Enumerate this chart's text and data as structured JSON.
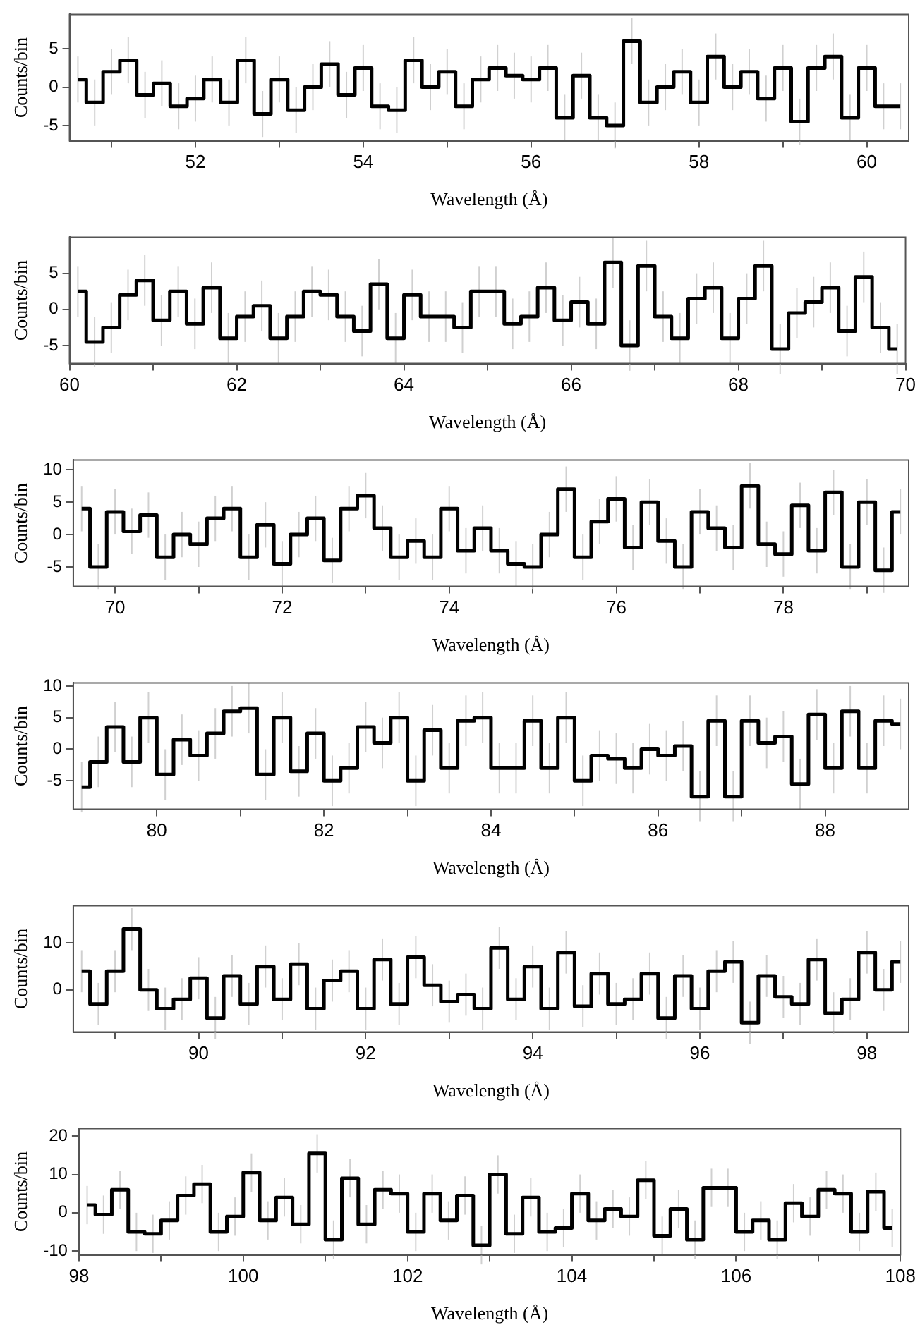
{
  "chart_data": [
    {
      "type": "step",
      "xlabel": "Wavelength (Å)",
      "ylabel": "Counts/bin",
      "color": "#000000",
      "grid": false,
      "xlim": [
        50.5,
        60.5
      ],
      "xticks": [
        {
          "value": 51,
          "label": null
        },
        52,
        {
          "value": 53,
          "label": null
        },
        54,
        {
          "value": 55,
          "label": null
        },
        56,
        {
          "value": 57,
          "label": null
        },
        58,
        {
          "value": 59,
          "label": null
        },
        60
      ],
      "ylim": [
        -7,
        9.5
      ],
      "yticks": [
        -5,
        0,
        5
      ],
      "x": [
        50.6,
        50.8,
        51.0,
        51.2,
        51.4,
        51.6,
        51.8,
        52.0,
        52.2,
        52.4,
        52.6,
        52.8,
        53.0,
        53.2,
        53.4,
        53.6,
        53.8,
        54.0,
        54.2,
        54.4,
        54.6,
        54.8,
        55.0,
        55.2,
        55.4,
        55.6,
        55.8,
        56.0,
        56.2,
        56.4,
        56.6,
        56.8,
        57.0,
        57.2,
        57.4,
        57.6,
        57.8,
        58.0,
        58.2,
        58.4,
        58.6,
        58.8,
        59.0,
        59.2,
        59.4,
        59.6,
        59.8,
        60.0,
        60.2,
        60.4
      ],
      "values": [
        1,
        -2,
        2,
        3.5,
        -1,
        0.5,
        -2.5,
        -1.5,
        1,
        -2,
        3.5,
        -3.5,
        1,
        -3,
        0,
        3,
        -1,
        2.5,
        -2.5,
        -3,
        3.5,
        0,
        2,
        -2.5,
        1,
        2.5,
        1.5,
        1,
        2.5,
        -4,
        1.5,
        -4,
        -5,
        6,
        -2,
        0,
        2,
        -2,
        4,
        0,
        2,
        -1.5,
        2.5,
        -4.5,
        2.5,
        4,
        -4,
        2.5,
        -2.5,
        -2.5
      ],
      "errors": [
        3,
        3,
        3,
        3,
        3,
        3,
        3,
        3,
        3,
        3,
        3,
        3,
        3,
        3,
        3,
        3,
        3,
        3,
        3,
        3,
        3,
        3,
        3,
        3,
        3,
        3,
        3,
        3,
        3,
        3,
        3,
        3,
        3,
        3,
        3,
        3,
        3,
        3,
        3,
        3,
        3,
        3,
        3,
        3,
        3,
        3,
        3,
        3,
        3,
        3
      ]
    },
    {
      "type": "step",
      "xlabel": "Wavelength (Å)",
      "ylabel": "Counts/bin",
      "color": "#000000",
      "grid": false,
      "xlim": [
        60,
        70
      ],
      "xticks": [
        60,
        {
          "value": 61,
          "label": null
        },
        62,
        {
          "value": 63,
          "label": null
        },
        64,
        {
          "value": 65,
          "label": null
        },
        66,
        {
          "value": 67,
          "label": null
        },
        68,
        {
          "value": 69,
          "label": null
        },
        70
      ],
      "ylim": [
        -7.5,
        10
      ],
      "yticks": [
        -5,
        0,
        5
      ],
      "x": [
        60.1,
        60.3,
        60.5,
        60.7,
        60.9,
        61.1,
        61.3,
        61.5,
        61.7,
        61.9,
        62.1,
        62.3,
        62.5,
        62.7,
        62.9,
        63.1,
        63.3,
        63.5,
        63.7,
        63.9,
        64.1,
        64.3,
        64.5,
        64.7,
        64.9,
        65.1,
        65.3,
        65.5,
        65.7,
        65.9,
        66.1,
        66.3,
        66.5,
        66.7,
        66.9,
        67.1,
        67.3,
        67.5,
        67.7,
        67.9,
        68.1,
        68.3,
        68.5,
        68.7,
        68.9,
        69.1,
        69.3,
        69.5,
        69.7,
        69.9
      ],
      "values": [
        2.5,
        -4.5,
        -2.5,
        2,
        4,
        -1.5,
        2.5,
        -2,
        3,
        -4,
        -1,
        0.5,
        -4,
        -1,
        2.5,
        2,
        -1,
        -3,
        3.5,
        -4,
        2,
        -1,
        -1,
        -2.5,
        2.5,
        2.5,
        -2,
        -1,
        3,
        -1.5,
        1,
        -2,
        6.5,
        -5,
        6,
        -1,
        -4,
        1.5,
        3,
        -4,
        1.5,
        6,
        -5.5,
        -0.5,
        1,
        3,
        -3,
        4.5,
        -2.5,
        -5.5
      ],
      "errors": [
        3.5,
        3.5,
        3.5,
        3.5,
        3.5,
        3.5,
        3.5,
        3.5,
        3.5,
        3.5,
        3.5,
        3.5,
        3.5,
        3.5,
        3.5,
        3.5,
        3.5,
        3.5,
        3.5,
        3.5,
        3.5,
        3.5,
        3.5,
        3.5,
        3.5,
        3.5,
        3.5,
        3.5,
        3.5,
        3.5,
        3.5,
        3.5,
        3.5,
        3.5,
        3.5,
        3.5,
        3.5,
        3.5,
        3.5,
        3.5,
        3.5,
        3.5,
        3.5,
        3.5,
        3.5,
        3.5,
        3.5,
        3.5,
        3.5,
        3.5
      ]
    },
    {
      "type": "step",
      "xlabel": "Wavelength (Å)",
      "ylabel": "Counts/bin",
      "color": "#000000",
      "grid": false,
      "xlim": [
        69.5,
        79.5
      ],
      "xticks": [
        70,
        {
          "value": 71,
          "label": null
        },
        72,
        {
          "value": 73,
          "label": null
        },
        74,
        {
          "value": 75,
          "label": null
        },
        76,
        {
          "value": 77,
          "label": null
        },
        78,
        {
          "value": 79,
          "label": null
        }
      ],
      "ylim": [
        -8,
        11.5
      ],
      "yticks": [
        -5,
        0,
        5,
        10
      ],
      "x": [
        69.6,
        69.8,
        70.0,
        70.2,
        70.4,
        70.6,
        70.8,
        71.0,
        71.2,
        71.4,
        71.6,
        71.8,
        72.0,
        72.2,
        72.4,
        72.6,
        72.8,
        73.0,
        73.2,
        73.4,
        73.6,
        73.8,
        74.0,
        74.2,
        74.4,
        74.6,
        74.8,
        75.0,
        75.2,
        75.4,
        75.6,
        75.8,
        76.0,
        76.2,
        76.4,
        76.6,
        76.8,
        77.0,
        77.2,
        77.4,
        77.6,
        77.8,
        78.0,
        78.2,
        78.4,
        78.6,
        78.8,
        79.0,
        79.2,
        79.4
      ],
      "values": [
        4,
        -5,
        3.5,
        0.5,
        3,
        -3.5,
        0,
        -1.5,
        2.5,
        4,
        -3.5,
        1.5,
        -4.5,
        0,
        2.5,
        -4,
        4,
        6,
        1,
        -3.5,
        -1,
        -3.5,
        4,
        -2.5,
        1,
        -2.5,
        -4.5,
        -5,
        0,
        7,
        -3.5,
        2,
        5.5,
        -2,
        5,
        -1,
        -5,
        3.5,
        1,
        -2,
        7.5,
        -1.5,
        -3,
        4.5,
        -2.5,
        6.5,
        -5,
        5,
        -5.5,
        3.5
      ],
      "errors": [
        3.5,
        3.5,
        3.5,
        3.5,
        3.5,
        3.5,
        3.5,
        3.5,
        3.5,
        3.5,
        3.5,
        3.5,
        3.5,
        3.5,
        3.5,
        3.5,
        3.5,
        3.5,
        3.5,
        3.5,
        3.5,
        3.5,
        3.5,
        3.5,
        3.5,
        3.5,
        3.5,
        3.5,
        3.5,
        3.5,
        3.5,
        3.5,
        3.5,
        3.5,
        3.5,
        3.5,
        3.5,
        3.5,
        3.5,
        3.5,
        3.5,
        3.5,
        3.5,
        3.5,
        3.5,
        3.5,
        3.5,
        3.5,
        3.5,
        3.5
      ]
    },
    {
      "type": "step",
      "xlabel": "Wavelength (Å)",
      "ylabel": "Counts/bin",
      "color": "#000000",
      "grid": false,
      "xlim": [
        79,
        89
      ],
      "xticks": [
        80,
        {
          "value": 81,
          "label": null
        },
        82,
        {
          "value": 83,
          "label": null
        },
        84,
        {
          "value": 85,
          "label": null
        },
        86,
        {
          "value": 87,
          "label": null
        },
        88
      ],
      "ylim": [
        -9.5,
        10.5
      ],
      "yticks": [
        -5,
        0,
        5,
        10
      ],
      "x": [
        79.1,
        79.3,
        79.5,
        79.7,
        79.9,
        80.1,
        80.3,
        80.5,
        80.7,
        80.9,
        81.1,
        81.3,
        81.5,
        81.7,
        81.9,
        82.1,
        82.3,
        82.5,
        82.7,
        82.9,
        83.1,
        83.3,
        83.5,
        83.7,
        83.9,
        84.1,
        84.3,
        84.5,
        84.7,
        84.9,
        85.1,
        85.3,
        85.5,
        85.7,
        85.9,
        86.1,
        86.3,
        86.5,
        86.7,
        86.9,
        87.1,
        87.3,
        87.5,
        87.7,
        87.9,
        88.1,
        88.3,
        88.5,
        88.7,
        88.9
      ],
      "values": [
        -6,
        -2,
        3.5,
        -2,
        5,
        -4,
        1.5,
        -1,
        2.5,
        6,
        6.5,
        -4,
        5,
        -3.5,
        2.5,
        -5,
        -3,
        3.5,
        1,
        5,
        -5,
        3,
        -3,
        4.5,
        5,
        -3,
        -3,
        4.5,
        -3,
        5,
        -5,
        -1,
        -1.5,
        -3,
        0,
        -1,
        0.5,
        -7.5,
        4.5,
        -7.5,
        4.5,
        1,
        2,
        -5.5,
        5.5,
        -3,
        6,
        -3,
        4.5,
        4
      ],
      "errors": [
        4,
        4,
        4,
        4,
        4,
        4,
        4,
        4,
        4,
        4,
        4,
        4,
        4,
        4,
        4,
        4,
        4,
        4,
        4,
        4,
        4,
        4,
        4,
        4,
        4,
        4,
        4,
        4,
        4,
        4,
        4,
        4,
        4,
        4,
        4,
        4,
        4,
        4,
        4,
        4,
        4,
        4,
        4,
        4,
        4,
        4,
        4,
        4,
        4,
        4
      ]
    },
    {
      "type": "step",
      "xlabel": "Wavelength (Å)",
      "ylabel": "Counts/bin",
      "color": "#000000",
      "grid": false,
      "xlim": [
        88.5,
        98.5
      ],
      "xticks": [
        {
          "value": 89,
          "label": null
        },
        90,
        {
          "value": 91,
          "label": null
        },
        92,
        {
          "value": 93,
          "label": null
        },
        94,
        {
          "value": 95,
          "label": null
        },
        96,
        {
          "value": 97,
          "label": null
        },
        98
      ],
      "ylim": [
        -9,
        18
      ],
      "yticks": [
        0,
        10
      ],
      "x": [
        88.6,
        88.8,
        89.0,
        89.2,
        89.4,
        89.6,
        89.8,
        90.0,
        90.2,
        90.4,
        90.6,
        90.8,
        91.0,
        91.2,
        91.4,
        91.6,
        91.8,
        92.0,
        92.2,
        92.4,
        92.6,
        92.8,
        93.0,
        93.2,
        93.4,
        93.6,
        93.8,
        94.0,
        94.2,
        94.4,
        94.6,
        94.8,
        95.0,
        95.2,
        95.4,
        95.6,
        95.8,
        96.0,
        96.2,
        96.4,
        96.6,
        96.8,
        97.0,
        97.2,
        97.4,
        97.6,
        97.8,
        98.0,
        98.2,
        98.4
      ],
      "values": [
        4,
        -3,
        4,
        13,
        0,
        -4,
        -2,
        2.5,
        -6,
        3,
        -3,
        5,
        -2,
        5.5,
        -4,
        2,
        4,
        -4,
        6.5,
        -3,
        7,
        1,
        -2.5,
        -1,
        -4,
        9,
        -2,
        5,
        -4,
        8,
        -3.5,
        3.5,
        -3,
        -2,
        3.5,
        -6,
        3,
        -4,
        4,
        6,
        -7,
        3,
        -1.5,
        -3,
        6.5,
        -5,
        -2,
        8,
        0,
        6
      ],
      "errors": [
        4.5,
        4.5,
        4.5,
        4.5,
        4.5,
        4.5,
        4.5,
        4.5,
        4.5,
        4.5,
        4.5,
        4.5,
        4.5,
        4.5,
        4.5,
        4.5,
        4.5,
        4.5,
        4.5,
        4.5,
        4.5,
        4.5,
        4.5,
        4.5,
        4.5,
        4.5,
        4.5,
        4.5,
        4.5,
        4.5,
        4.5,
        4.5,
        4.5,
        4.5,
        4.5,
        4.5,
        4.5,
        4.5,
        4.5,
        4.5,
        4.5,
        4.5,
        4.5,
        4.5,
        4.5,
        4.5,
        4.5,
        4.5,
        4.5,
        4.5
      ]
    },
    {
      "type": "step",
      "xlabel": "Wavelength (Å)",
      "ylabel": "Counts/bin",
      "color": "#000000",
      "grid": false,
      "xlim": [
        98,
        108
      ],
      "xticks": [
        98,
        {
          "value": 99,
          "label": null
        },
        100,
        {
          "value": 101,
          "label": null
        },
        102,
        {
          "value": 103,
          "label": null
        },
        104,
        {
          "value": 105,
          "label": null
        },
        106,
        {
          "value": 107,
          "label": null
        },
        108
      ],
      "ylim": [
        -11,
        22
      ],
      "yticks": [
        -10,
        0,
        10,
        20
      ],
      "x": [
        98.1,
        98.3,
        98.5,
        98.7,
        98.9,
        99.1,
        99.3,
        99.5,
        99.7,
        99.9,
        100.1,
        100.3,
        100.5,
        100.7,
        100.9,
        101.1,
        101.3,
        101.5,
        101.7,
        101.9,
        102.1,
        102.3,
        102.5,
        102.7,
        102.9,
        103.1,
        103.3,
        103.5,
        103.7,
        103.9,
        104.1,
        104.3,
        104.5,
        104.7,
        104.9,
        105.1,
        105.3,
        105.5,
        105.7,
        105.9,
        106.1,
        106.3,
        106.5,
        106.7,
        106.9,
        107.1,
        107.3,
        107.5,
        107.7,
        107.9
      ],
      "values": [
        2,
        -0.5,
        6,
        -5,
        -5.5,
        -2,
        4.5,
        7.5,
        -5,
        -1,
        10.5,
        -2,
        4,
        -3,
        15.5,
        -7,
        9,
        -3,
        6,
        5,
        -5,
        5,
        -2,
        4.5,
        -8.5,
        10,
        -5.5,
        4,
        -5,
        -4,
        5,
        -2,
        1,
        -1,
        8.5,
        -6,
        1,
        -7,
        6.5,
        6.5,
        -5,
        -2,
        -7,
        2.5,
        -1,
        6,
        5,
        -5,
        5.5,
        -4
      ],
      "errors": [
        5,
        5,
        5,
        5,
        5,
        5,
        5,
        5,
        5,
        5,
        5,
        5,
        5,
        5,
        5,
        5,
        5,
        5,
        5,
        5,
        5,
        5,
        5,
        5,
        5,
        5,
        5,
        5,
        5,
        5,
        5,
        5,
        5,
        5,
        5,
        5,
        5,
        5,
        5,
        5,
        5,
        5,
        5,
        5,
        5,
        5,
        5,
        5,
        5,
        5
      ]
    }
  ]
}
